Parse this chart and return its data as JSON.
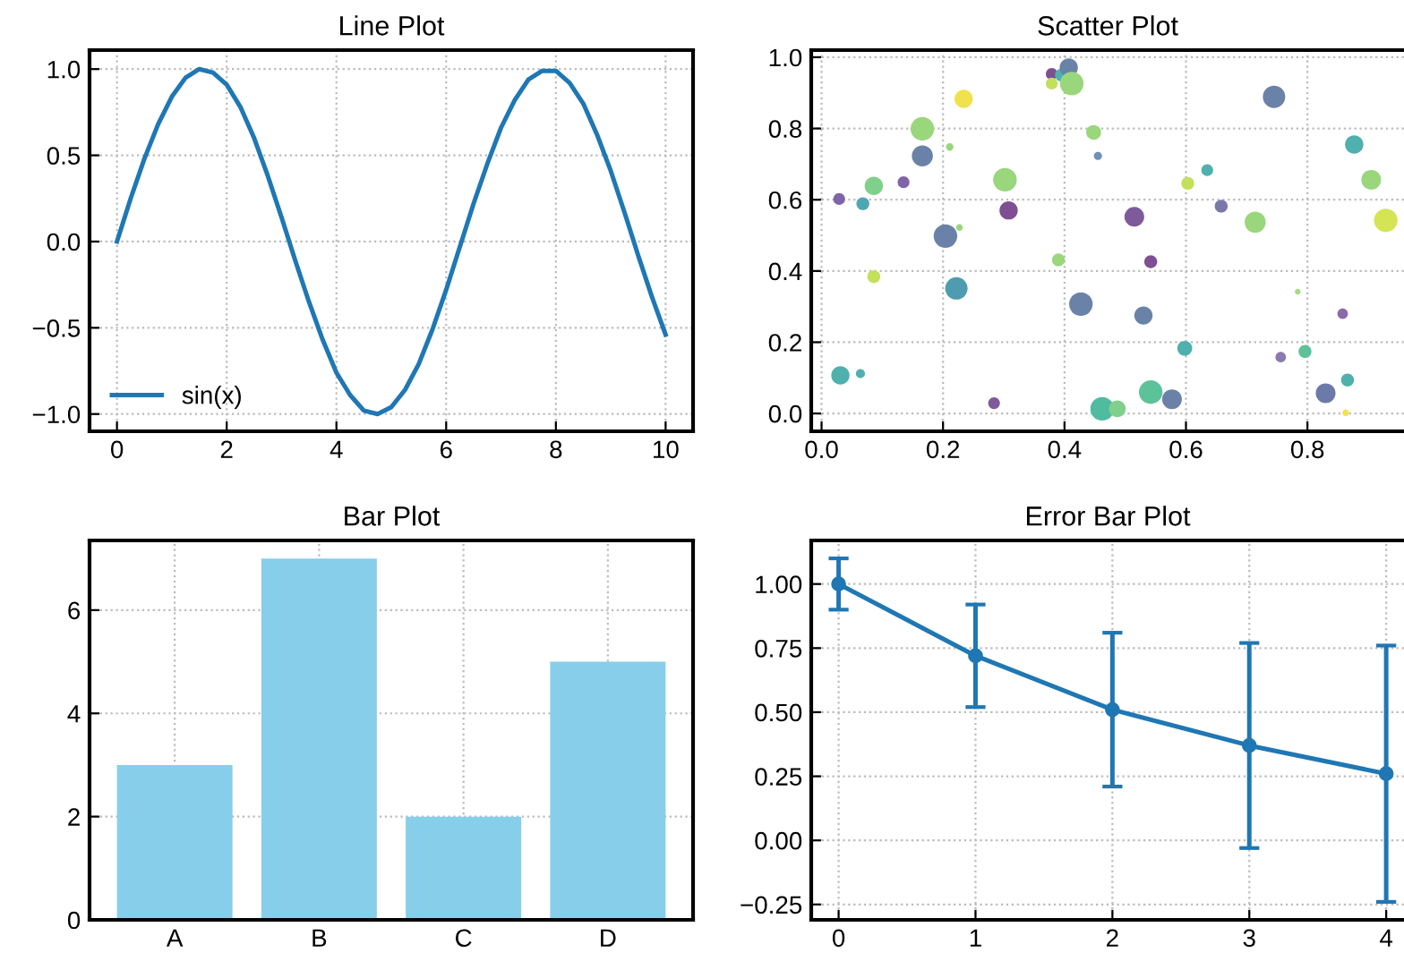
{
  "chart_data": [
    {
      "type": "line",
      "title": "Line Plot",
      "x": [
        0,
        0.25,
        0.5,
        0.75,
        1,
        1.25,
        1.5,
        1.75,
        2,
        2.25,
        2.5,
        2.75,
        3,
        3.25,
        3.5,
        3.75,
        4,
        4.25,
        4.5,
        4.75,
        5,
        5.25,
        5.5,
        5.75,
        6,
        6.25,
        6.5,
        6.75,
        7,
        7.25,
        7.5,
        7.75,
        8,
        8.25,
        8.5,
        8.75,
        9,
        9.25,
        9.5,
        9.75,
        10
      ],
      "series": [
        {
          "name": "sin(x)",
          "color": "#1f77b4",
          "values": [
            0,
            0.25,
            0.48,
            0.68,
            0.84,
            0.95,
            1.0,
            0.98,
            0.91,
            0.78,
            0.6,
            0.38,
            0.14,
            -0.11,
            -0.35,
            -0.57,
            -0.76,
            -0.89,
            -0.98,
            -1.0,
            -0.96,
            -0.86,
            -0.71,
            -0.51,
            -0.28,
            -0.03,
            0.22,
            0.45,
            0.66,
            0.82,
            0.94,
            0.99,
            0.99,
            0.92,
            0.8,
            0.62,
            0.41,
            0.17,
            -0.08,
            -0.32,
            -0.54
          ]
        }
      ],
      "xlim": [
        -0.5,
        10.5
      ],
      "ylim": [
        -1.1,
        1.11
      ],
      "xticks": [
        0,
        2,
        4,
        6,
        8,
        10
      ],
      "yticks": [
        {
          "value": -1.0,
          "label": "−1.0"
        },
        {
          "value": -0.5,
          "label": "−0.5"
        },
        {
          "value": 0.0,
          "label": "0.0"
        },
        {
          "value": 0.5,
          "label": "0.5"
        },
        {
          "value": 1.0,
          "label": "1.0"
        }
      ],
      "grid": true,
      "legend": "lower left"
    },
    {
      "type": "scatter",
      "title": "Scatter Plot",
      "x": [
        0.029,
        0.031,
        0.064,
        0.068,
        0.086,
        0.086,
        0.135,
        0.166,
        0.166,
        0.204,
        0.211,
        0.222,
        0.227,
        0.234,
        0.284,
        0.302,
        0.308,
        0.379,
        0.379,
        0.395,
        0.407,
        0.412,
        0.39,
        0.427,
        0.448,
        0.455,
        0.462,
        0.487,
        0.515,
        0.53,
        0.542,
        0.542,
        0.577,
        0.598,
        0.603,
        0.635,
        0.658,
        0.714,
        0.745,
        0.756,
        0.784,
        0.796,
        0.83,
        0.858,
        0.866,
        0.863,
        0.877,
        0.905,
        0.929
      ],
      "series": [
        {
          "values": [
            0.602,
            0.107,
            0.112,
            0.589,
            0.639,
            0.384,
            0.649,
            0.799,
            0.723,
            0.498,
            0.748,
            0.351,
            0.522,
            0.883,
            0.029,
            0.656,
            0.57,
            0.953,
            0.926,
            0.95,
            0.971,
            0.926,
            0.431,
            0.307,
            0.789,
            0.723,
            0.013,
            0.013,
            0.552,
            0.275,
            0.426,
            0.06,
            0.04,
            0.183,
            0.646,
            0.683,
            0.582,
            0.537,
            0.889,
            0.158,
            0.342,
            0.174,
            0.057,
            0.28,
            0.094,
            0.002,
            0.755,
            0.656,
            0.542
          ],
          "sizes": [
            0.25,
            0.6,
            0.15,
            0.3,
            0.6,
            0.3,
            0.25,
            1,
            0.8,
            1,
            0.1,
            0.9,
            0.08,
            0.6,
            0.25,
            1,
            0.6,
            0.25,
            0.25,
            0.3,
            0.6,
            1,
            0.3,
            1,
            0.4,
            0.12,
            1,
            0.5,
            0.7,
            0.6,
            0.3,
            1,
            0.7,
            0.4,
            0.3,
            0.25,
            0.3,
            0.8,
            0.9,
            0.2,
            0.06,
            0.3,
            0.7,
            0.2,
            0.3,
            0.08,
            0.6,
            0.7,
            1
          ],
          "colors": [
            "#7e64a8",
            "#4fb0ae",
            "#4fb0ae",
            "#4fa7b4",
            "#7fd08a",
            "#c3e05a",
            "#7e64a8",
            "#9ad67c",
            "#6b82a8",
            "#6b82a8",
            "#9ad67c",
            "#4f9cb0",
            "#9ad67c",
            "#f0e24c",
            "#7e5a9b",
            "#9ad67c",
            "#7e4f92",
            "#7e4f92",
            "#c3e05a",
            "#4fb0ae",
            "#6b82a8",
            "#9ad67c",
            "#9ad67c",
            "#6b82a8",
            "#9ad67c",
            "#7090b8",
            "#4fbca0",
            "#7fd08a",
            "#7e5a9b",
            "#6b82a8",
            "#7e4f92",
            "#5cc29a",
            "#6b82a8",
            "#4fb0ae",
            "#c3e05a",
            "#4fb0ae",
            "#7a78a8",
            "#9ad67c",
            "#6b82a8",
            "#8a7ab0",
            "#a6dc80",
            "#5cc29a",
            "#6b7aa8",
            "#8a6aa8",
            "#4fb0ae",
            "#f0e24c",
            "#4fb0ae",
            "#9ad67c",
            "#d4e454"
          ]
        }
      ],
      "xlim": [
        -0.017,
        0.959
      ],
      "ylim": [
        -0.05,
        1.02
      ],
      "xticks": [
        {
          "value": 0,
          "label": "0.0"
        },
        0.2,
        0.4,
        0.6,
        0.8
      ],
      "yticks": [
        {
          "value": 0,
          "label": "0.0"
        },
        0.2,
        0.4,
        0.6,
        0.8,
        {
          "value": 1,
          "label": "1.0"
        }
      ],
      "grid": true
    },
    {
      "type": "bar",
      "title": "Bar Plot",
      "categories": [
        "A",
        "B",
        "C",
        "D"
      ],
      "series": [
        {
          "color": "#87ceeb",
          "values": [
            3,
            7,
            2,
            5
          ]
        }
      ],
      "ylim": [
        0,
        7.35
      ],
      "yticks": [
        0,
        2,
        4,
        6
      ],
      "grid": true
    },
    {
      "type": "line",
      "title": "Error Bar Plot",
      "x": [
        0,
        1,
        2,
        3,
        4
      ],
      "series": [
        {
          "color": "#1f77b4",
          "values": [
            1.0,
            0.72,
            0.51,
            0.37,
            0.26
          ],
          "errors": [
            0.1,
            0.2,
            0.3,
            0.4,
            0.5
          ]
        }
      ],
      "xlim": [
        -0.2,
        4.13
      ],
      "ylim": [
        -0.31,
        1.17
      ],
      "xticks": [
        0,
        1,
        2,
        3,
        4
      ],
      "yticks": [
        {
          "value": -0.25,
          "label": "−0.25"
        },
        {
          "value": 0.0,
          "label": "0.00"
        },
        {
          "value": 0.25,
          "label": "0.25"
        },
        {
          "value": 0.5,
          "label": "0.50"
        },
        {
          "value": 0.75,
          "label": "0.75"
        },
        {
          "value": 1.0,
          "label": "1.00"
        }
      ],
      "grid": true,
      "marker": "circle"
    }
  ]
}
